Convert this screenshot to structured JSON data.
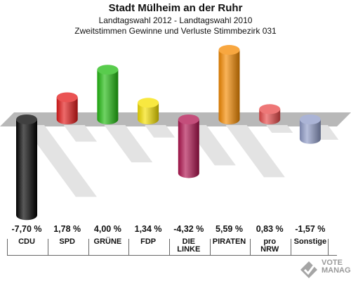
{
  "header": {
    "title": "Stadt Mülheim an der Ruhr",
    "subtitle": "Landtagswahl 2012 - Landtagswahl 2010",
    "description": "Zweitstimmen Gewinne und Verluste Stimmbezirk 031"
  },
  "chart_data": {
    "type": "bar",
    "title": "Stadt Mülheim an der Ruhr",
    "categories": [
      "CDU",
      "SPD",
      "GRÜNE",
      "FDP",
      "DIE LINKE",
      "PIRATEN",
      "pro NRW",
      "Sonstige"
    ],
    "values": [
      -7.7,
      1.78,
      4.0,
      1.34,
      -4.32,
      5.59,
      0.83,
      -1.57
    ],
    "value_labels": [
      "-7,70 %",
      "1,78 %",
      "4,00 %",
      "1,34 %",
      "-4,32 %",
      "5,59 %",
      "0,83 %",
      "-1,57 %"
    ],
    "colors": [
      "#000000",
      "#e31a1a",
      "#22bb11",
      "#f5e000",
      "#b0134f",
      "#f58a00",
      "#e84a4a",
      "#8f9bc8"
    ],
    "grid": false,
    "legend": "none"
  },
  "categories_display": [
    {
      "line1": "CDU",
      "line2": ""
    },
    {
      "line1": "SPD",
      "line2": ""
    },
    {
      "line1": "GRÜNE",
      "line2": ""
    },
    {
      "line1": "FDP",
      "line2": ""
    },
    {
      "line1": "DIE",
      "line2": "LINKE"
    },
    {
      "line1": "PIRATEN",
      "line2": ""
    },
    {
      "line1": "pro",
      "line2": "NRW"
    },
    {
      "line1": "Sonstige",
      "line2": ""
    }
  ],
  "logo": {
    "text_line1": "VOTE",
    "text_line2": "MANAGER",
    "icon": "checkmark-ballot-icon",
    "color": "#9a9a9a"
  }
}
